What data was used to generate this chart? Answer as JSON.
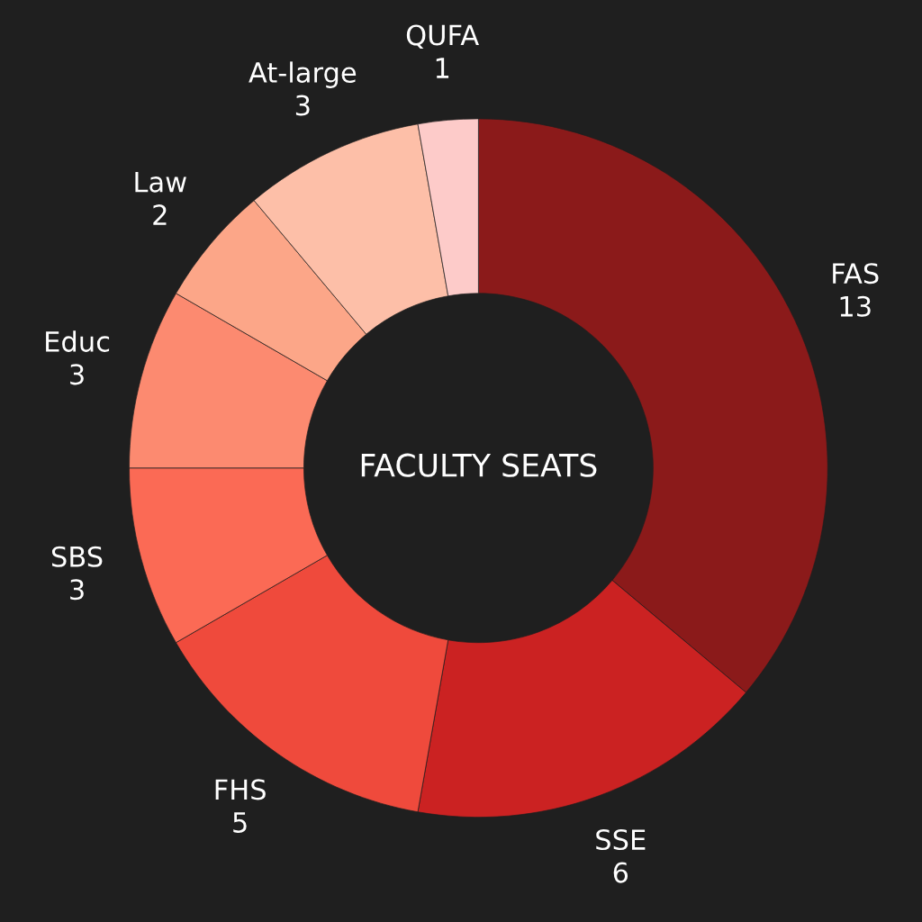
{
  "chart_data": {
    "type": "donut",
    "title": "FACULTY SEATS",
    "categories": [
      "FAS",
      "SSE",
      "FHS",
      "SBS",
      "Educ",
      "Law",
      "At-large",
      "QUFA"
    ],
    "values": [
      13,
      6,
      5,
      3,
      3,
      2,
      3,
      1
    ],
    "colors": [
      "#8b1a1a",
      "#cb2222",
      "#ef4a3c",
      "#fb6a55",
      "#fc8a70",
      "#fca688",
      "#fdbfa8",
      "#fdcbc9"
    ],
    "data_labels": true
  }
}
